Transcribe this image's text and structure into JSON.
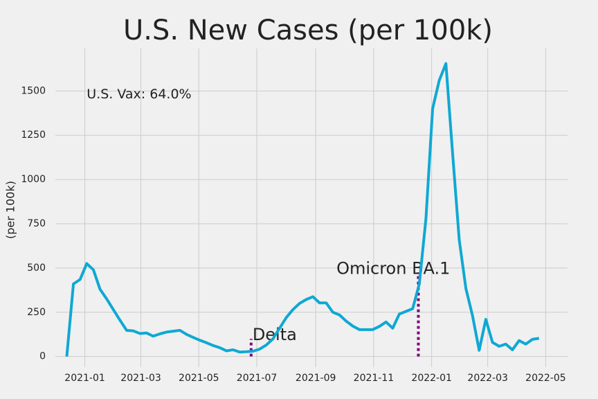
{
  "chart_data": {
    "type": "line",
    "title": "U.S. New Cases (per 100k)",
    "y_label": "(per 100k)",
    "x": [
      "2020-12-13",
      "2020-12-20",
      "2020-12-27",
      "2021-01-03",
      "2021-01-10",
      "2021-01-17",
      "2021-01-24",
      "2021-01-31",
      "2021-02-07",
      "2021-02-14",
      "2021-02-21",
      "2021-02-28",
      "2021-03-07",
      "2021-03-14",
      "2021-03-21",
      "2021-03-28",
      "2021-04-04",
      "2021-04-11",
      "2021-04-18",
      "2021-04-25",
      "2021-05-02",
      "2021-05-09",
      "2021-05-16",
      "2021-05-23",
      "2021-05-30",
      "2021-06-06",
      "2021-06-13",
      "2021-06-20",
      "2021-06-27",
      "2021-07-04",
      "2021-07-11",
      "2021-07-18",
      "2021-07-25",
      "2021-08-01",
      "2021-08-08",
      "2021-08-15",
      "2021-08-22",
      "2021-08-29",
      "2021-09-05",
      "2021-09-12",
      "2021-09-19",
      "2021-09-26",
      "2021-10-03",
      "2021-10-10",
      "2021-10-17",
      "2021-10-24",
      "2021-10-31",
      "2021-11-07",
      "2021-11-14",
      "2021-11-21",
      "2021-11-28",
      "2021-12-05",
      "2021-12-12",
      "2021-12-19",
      "2021-12-26",
      "2022-01-02",
      "2022-01-09",
      "2022-01-16",
      "2022-01-23",
      "2022-01-30",
      "2022-02-06",
      "2022-02-13",
      "2022-02-20",
      "2022-02-27",
      "2022-03-06",
      "2022-03-13",
      "2022-03-20",
      "2022-03-27",
      "2022-04-03",
      "2022-04-10",
      "2022-04-17",
      "2022-04-24"
    ],
    "series": [
      {
        "name": "New Cases",
        "color": "#0fa8d4",
        "values": [
          0,
          410,
          435,
          525,
          490,
          380,
          325,
          265,
          205,
          148,
          145,
          130,
          133,
          115,
          128,
          138,
          143,
          148,
          125,
          108,
          92,
          78,
          62,
          50,
          32,
          38,
          25,
          27,
          30,
          42,
          65,
          100,
          160,
          220,
          265,
          300,
          322,
          338,
          303,
          303,
          250,
          235,
          200,
          172,
          152,
          152,
          152,
          170,
          195,
          160,
          240,
          255,
          270,
          410,
          780,
          1400,
          1560,
          1655,
          1150,
          660,
          385,
          230,
          35,
          210,
          80,
          58,
          70,
          38,
          90,
          70,
          97,
          103
        ]
      }
    ],
    "xlim": [
      "2020-12-01",
      "2022-05-24"
    ],
    "xticks": [
      "2021-01",
      "2021-03",
      "2021-05",
      "2021-07",
      "2021-09",
      "2021-11",
      "2022-01",
      "2022-03",
      "2022-05"
    ],
    "ylim": [
      -60,
      1740
    ],
    "yticks": [
      0,
      250,
      500,
      750,
      1000,
      1250,
      1500
    ],
    "grid": true,
    "vlines": [
      {
        "x": "2021-06-25",
        "ymax": 100,
        "label": "Delta",
        "color": "purple"
      },
      {
        "x": "2021-12-18",
        "ymax": 475,
        "label": "Omicron BA.1",
        "color": "purple"
      }
    ],
    "annotations": [
      {
        "text": "U.S. Vax: 64.0%",
        "x": "2021-01-03",
        "y": 1480
      }
    ]
  }
}
